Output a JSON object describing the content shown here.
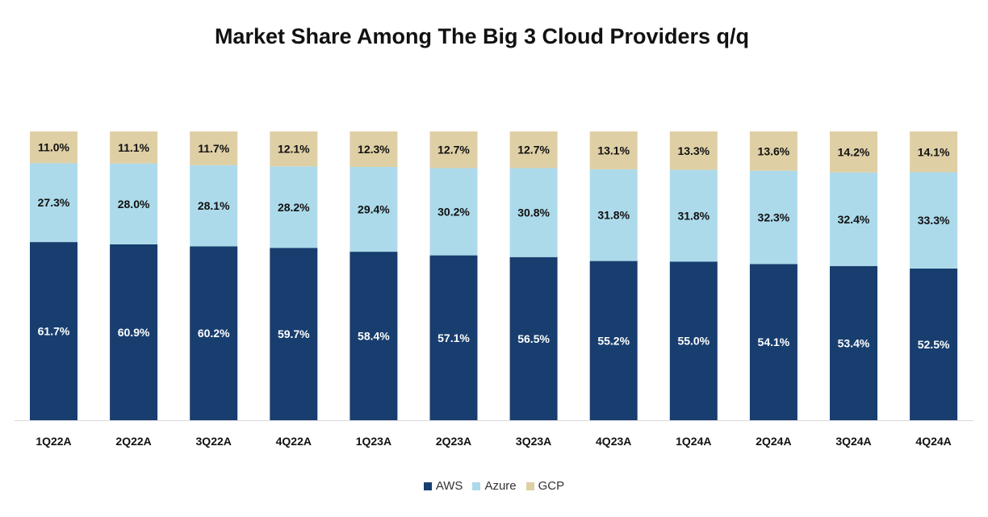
{
  "chart_data": {
    "type": "bar",
    "stacked": true,
    "title": "Market Share Among The Big 3 Cloud Providers q/q",
    "xlabel": "",
    "ylabel": "",
    "ylim": [
      0,
      100
    ],
    "grid": false,
    "legend_position": "bottom",
    "categories": [
      "1Q22A",
      "2Q22A",
      "3Q22A",
      "4Q22A",
      "1Q23A",
      "2Q23A",
      "3Q23A",
      "4Q23A",
      "1Q24A",
      "2Q24A",
      "3Q24A",
      "4Q24A"
    ],
    "series": [
      {
        "name": "AWS",
        "color": "#183e6f",
        "values": [
          61.7,
          60.9,
          60.2,
          59.7,
          58.4,
          57.1,
          56.5,
          55.2,
          55.0,
          54.1,
          53.4,
          52.5
        ],
        "labels": [
          "61.7%",
          "60.9%",
          "60.2%",
          "59.7%",
          "58.4%",
          "57.1%",
          "56.5%",
          "55.2%",
          "55.0%",
          "54.1%",
          "53.4%",
          "52.5%"
        ]
      },
      {
        "name": "Azure",
        "color": "#acdaeb",
        "values": [
          27.3,
          28.0,
          28.1,
          28.2,
          29.4,
          30.2,
          30.8,
          31.8,
          31.8,
          32.3,
          32.4,
          33.3
        ],
        "labels": [
          "27.3%",
          "28.0%",
          "28.1%",
          "28.2%",
          "29.4%",
          "30.2%",
          "30.8%",
          "31.8%",
          "31.8%",
          "32.3%",
          "32.4%",
          "33.3%"
        ]
      },
      {
        "name": "GCP",
        "color": "#dfcfa5",
        "values": [
          11.0,
          11.1,
          11.7,
          12.1,
          12.3,
          12.7,
          12.7,
          13.1,
          13.3,
          13.6,
          14.2,
          14.1
        ],
        "labels": [
          "11.0%",
          "11.1%",
          "11.7%",
          "12.1%",
          "12.3%",
          "12.7%",
          "12.7%",
          "13.1%",
          "13.3%",
          "13.6%",
          "14.2%",
          "14.1%"
        ]
      }
    ]
  }
}
